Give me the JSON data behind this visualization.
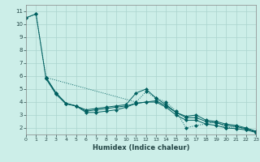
{
  "xlabel": "Humidex (Indice chaleur)",
  "bg_color": "#cceee8",
  "grid_color": "#aad4ce",
  "line_color": "#006060",
  "xlim": [
    0,
    23
  ],
  "ylim": [
    1.5,
    11.5
  ],
  "yticks": [
    2,
    3,
    4,
    5,
    6,
    7,
    8,
    9,
    10,
    11
  ],
  "xticks": [
    0,
    1,
    2,
    3,
    4,
    5,
    6,
    7,
    8,
    9,
    10,
    11,
    12,
    13,
    14,
    15,
    16,
    17,
    18,
    19,
    20,
    21,
    22,
    23
  ],
  "series": [
    {
      "x": [
        0,
        1,
        2,
        11,
        12,
        13,
        14,
        15,
        16,
        17,
        18,
        19,
        20,
        21,
        22,
        23
      ],
      "y": [
        10.5,
        10.8,
        5.9,
        4.0,
        4.8,
        4.3,
        4.0,
        3.3,
        2.0,
        2.2,
        2.3,
        2.5,
        2.0,
        2.1,
        1.9,
        1.7
      ],
      "linestyle": "dotted",
      "marker": "D",
      "markersize": 2.0
    },
    {
      "x": [
        2,
        3,
        4,
        5,
        6,
        7,
        8,
        9,
        10,
        11,
        12,
        13,
        14,
        15,
        16,
        17,
        18,
        19,
        20,
        21,
        22,
        23
      ],
      "y": [
        5.9,
        4.7,
        3.9,
        3.7,
        3.4,
        3.5,
        3.6,
        3.7,
        3.8,
        4.7,
        5.0,
        4.3,
        3.8,
        3.2,
        2.9,
        3.0,
        2.6,
        2.5,
        2.3,
        2.2,
        2.0,
        1.75
      ],
      "linestyle": "solid",
      "marker": "D",
      "markersize": 2.0
    },
    {
      "x": [
        2,
        3,
        4,
        5,
        6,
        7,
        8,
        9,
        10,
        11,
        12,
        13,
        14,
        15,
        16,
        17,
        18,
        19,
        20,
        21,
        22,
        23
      ],
      "y": [
        5.9,
        4.7,
        3.9,
        3.7,
        3.3,
        3.4,
        3.5,
        3.6,
        3.7,
        3.9,
        4.0,
        4.1,
        3.7,
        3.2,
        2.8,
        2.8,
        2.5,
        2.4,
        2.2,
        2.1,
        1.95,
        1.7
      ],
      "linestyle": "solid",
      "marker": "D",
      "markersize": 2.0
    },
    {
      "x": [
        0,
        1,
        2,
        3,
        4,
        5,
        6,
        7,
        8,
        9,
        10,
        11,
        12,
        13,
        14,
        15,
        16,
        17,
        18,
        19,
        20,
        21,
        22,
        23
      ],
      "y": [
        10.5,
        10.8,
        5.8,
        4.6,
        3.85,
        3.7,
        3.2,
        3.2,
        3.3,
        3.4,
        3.6,
        3.9,
        4.0,
        4.0,
        3.6,
        3.0,
        2.6,
        2.6,
        2.3,
        2.2,
        2.0,
        1.95,
        1.85,
        1.65
      ],
      "linestyle": "solid",
      "marker": "D",
      "markersize": 2.0
    }
  ]
}
